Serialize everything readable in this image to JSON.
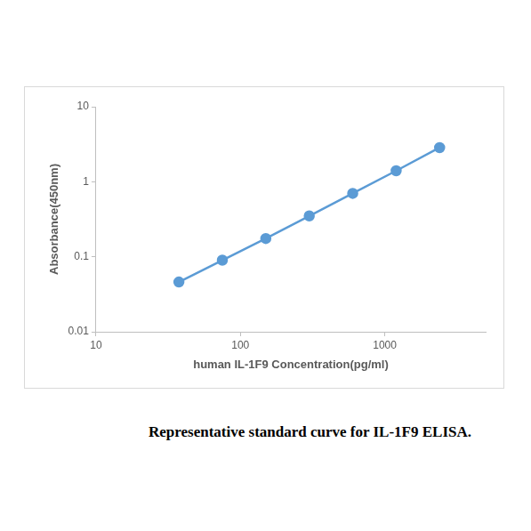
{
  "chart_data": {
    "type": "line",
    "title": "Representative standard curve for IL-1F9 ELISA.",
    "x_label": "human IL-1F9 Concentration(pg/ml)",
    "y_label": "Absorbance(450nm)",
    "x": [
      37.5,
      75,
      150,
      300,
      600,
      1200,
      2400
    ],
    "values": [
      0.046,
      0.09,
      0.175,
      0.35,
      0.7,
      1.4,
      2.85
    ],
    "color": "#5b9bd5",
    "marker": "circle",
    "line_style": "solid",
    "log": true,
    "grid": false,
    "xlim": [
      10,
      5000
    ],
    "xticks": [
      10,
      100,
      1000
    ],
    "ylim": [
      0.01,
      10
    ],
    "yticks": [
      0.01,
      0.1,
      1,
      10
    ]
  }
}
